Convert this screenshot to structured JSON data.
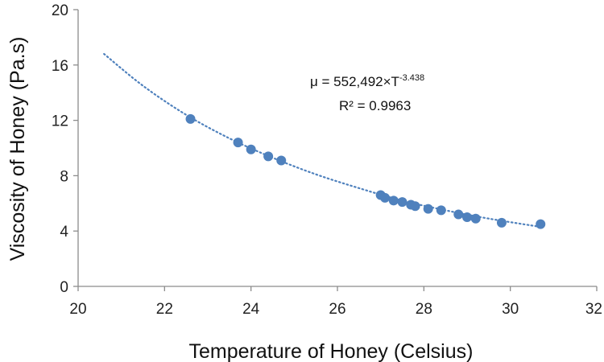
{
  "chart_data": {
    "type": "scatter",
    "title": "",
    "xlabel": "Temperature of Honey (Celsius)",
    "ylabel": "Viscosity of Honey (Pa.s)",
    "xlim": [
      20,
      32
    ],
    "ylim": [
      0,
      20
    ],
    "x_ticks": [
      "20",
      "22",
      "24",
      "26",
      "28",
      "30",
      "32"
    ],
    "y_ticks": [
      "0",
      "4",
      "8",
      "12",
      "16",
      "20"
    ],
    "grid": false,
    "legend": "none",
    "series": [
      {
        "points": [
          {
            "x": 22.6,
            "y": 12.1
          },
          {
            "x": 23.7,
            "y": 10.4
          },
          {
            "x": 24.0,
            "y": 9.9
          },
          {
            "x": 24.4,
            "y": 9.4
          },
          {
            "x": 24.7,
            "y": 9.1
          },
          {
            "x": 27.0,
            "y": 6.6
          },
          {
            "x": 27.1,
            "y": 6.4
          },
          {
            "x": 27.3,
            "y": 6.2
          },
          {
            "x": 27.5,
            "y": 6.1
          },
          {
            "x": 27.7,
            "y": 5.9
          },
          {
            "x": 27.8,
            "y": 5.8
          },
          {
            "x": 28.1,
            "y": 5.6
          },
          {
            "x": 28.4,
            "y": 5.5
          },
          {
            "x": 28.8,
            "y": 5.2
          },
          {
            "x": 29.0,
            "y": 5.0
          },
          {
            "x": 29.2,
            "y": 4.9
          },
          {
            "x": 29.8,
            "y": 4.6
          },
          {
            "x": 30.7,
            "y": 4.5
          }
        ],
        "color": "#4f81bd"
      }
    ],
    "trendline": {
      "x_range": [
        20.6,
        30.7
      ],
      "samples": [
        {
          "x": 20.6,
          "y": 16.8
        },
        {
          "x": 21.5,
          "y": 14.5
        },
        {
          "x": 22.5,
          "y": 12.4
        },
        {
          "x": 23.5,
          "y": 10.7
        },
        {
          "x": 24.5,
          "y": 9.3
        },
        {
          "x": 25.5,
          "y": 8.1
        },
        {
          "x": 26.5,
          "y": 7.1
        },
        {
          "x": 27.5,
          "y": 6.2
        },
        {
          "x": 28.5,
          "y": 5.5
        },
        {
          "x": 29.5,
          "y": 4.9
        },
        {
          "x": 30.7,
          "y": 4.3
        }
      ],
      "color": "#4f81bd",
      "style": "dotted"
    },
    "annotation": {
      "equation_base": "μ = 552,492×T",
      "equation_exponent": "-3.438",
      "r_squared": "R² = 0.9963"
    }
  }
}
